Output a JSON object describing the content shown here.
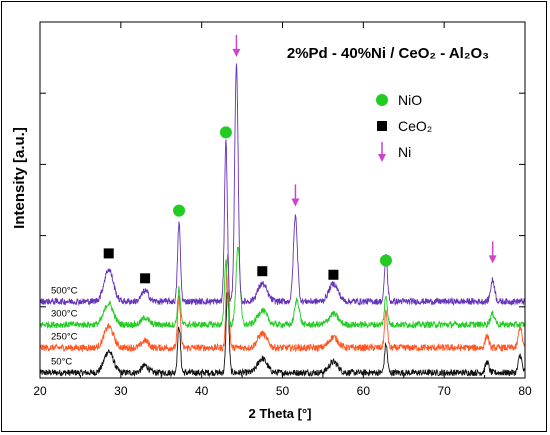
{
  "chart_data": {
    "type": "line",
    "title": "2%Pd - 40%Ni / CeO₂ - Al₂O₃",
    "xlabel": "2 Theta [°]",
    "ylabel": "Intensity [a.u.]",
    "xlim": [
      20,
      80
    ],
    "x_ticks": [
      20,
      30,
      40,
      50,
      60,
      70,
      80
    ],
    "y_ticks_labeled": false,
    "grid": false,
    "legend_position": "top-right",
    "legend": [
      {
        "label": "NiO",
        "marker": "circle",
        "color": "#22cc22"
      },
      {
        "label": "CeO₂",
        "marker": "square",
        "color": "#000000"
      },
      {
        "label": "Ni",
        "marker": "arrow",
        "color": "#cc44cc"
      }
    ],
    "series": [
      {
        "name": "50°C",
        "color": "#111111",
        "baseline": 1.5,
        "noise": 1.8,
        "peaks": [
          [
            28.5,
            6,
            0.8
          ],
          [
            33,
            2,
            0.6
          ],
          [
            37.2,
            13,
            0.25
          ],
          [
            43.2,
            23,
            0.25
          ],
          [
            47.5,
            4,
            0.8
          ],
          [
            56.3,
            3,
            0.8
          ],
          [
            62.8,
            8,
            0.25
          ],
          [
            75.3,
            3,
            0.3
          ],
          [
            79.4,
            5,
            0.3
          ]
        ]
      },
      {
        "name": "250°C",
        "color": "#ff5522",
        "baseline": 8.5,
        "noise": 1.9,
        "peaks": [
          [
            28.5,
            6,
            0.8
          ],
          [
            33,
            2,
            0.6
          ],
          [
            37.2,
            14,
            0.25
          ],
          [
            43.2,
            26,
            0.25
          ],
          [
            47.5,
            4,
            0.8
          ],
          [
            56.3,
            3,
            0.8
          ],
          [
            62.8,
            10,
            0.25
          ],
          [
            75.3,
            3.5,
            0.3
          ],
          [
            79.4,
            6,
            0.3
          ]
        ]
      },
      {
        "name": "300°C",
        "color": "#22cc22",
        "baseline": 15,
        "noise": 1.8,
        "peaks": [
          [
            28.5,
            6,
            0.8
          ],
          [
            33,
            2,
            0.6
          ],
          [
            37.2,
            10,
            0.25
          ],
          [
            43.0,
            18,
            0.25
          ],
          [
            44.5,
            22,
            0.35
          ],
          [
            47.5,
            4,
            0.8
          ],
          [
            51.8,
            7,
            0.4
          ],
          [
            56.3,
            3,
            0.8
          ],
          [
            62.8,
            8,
            0.25
          ],
          [
            76.0,
            3,
            0.4
          ]
        ]
      },
      {
        "name": "500°C",
        "color": "#6633bb",
        "baseline": 21.5,
        "noise": 1.8,
        "peaks": [
          [
            28.5,
            9,
            0.8
          ],
          [
            33,
            3,
            0.6
          ],
          [
            37.2,
            22,
            0.25
          ],
          [
            43.0,
            45,
            0.25
          ],
          [
            44.3,
            66,
            0.3
          ],
          [
            47.5,
            5,
            0.8
          ],
          [
            51.6,
            24,
            0.35
          ],
          [
            56.3,
            5,
            0.8
          ],
          [
            62.8,
            13,
            0.25
          ],
          [
            76.0,
            6,
            0.35
          ]
        ]
      }
    ],
    "phase_markers": [
      {
        "phase": "CeO₂",
        "marker": "square",
        "x": 28.5,
        "y": 35
      },
      {
        "phase": "CeO₂",
        "marker": "square",
        "x": 33,
        "y": 28
      },
      {
        "phase": "CeO₂",
        "marker": "square",
        "x": 47.5,
        "y": 30
      },
      {
        "phase": "CeO₂",
        "marker": "square",
        "x": 56.3,
        "y": 29
      },
      {
        "phase": "NiO",
        "marker": "circle",
        "x": 37.2,
        "y": 47
      },
      {
        "phase": "NiO",
        "marker": "circle",
        "x": 43.0,
        "y": 69
      },
      {
        "phase": "NiO",
        "marker": "circle",
        "x": 62.8,
        "y": 33
      },
      {
        "phase": "Ni",
        "marker": "arrow",
        "x": 44.3,
        "y": 93
      },
      {
        "phase": "Ni",
        "marker": "arrow",
        "x": 51.6,
        "y": 51
      },
      {
        "phase": "Ni",
        "marker": "arrow",
        "x": 76.0,
        "y": 35
      }
    ]
  }
}
